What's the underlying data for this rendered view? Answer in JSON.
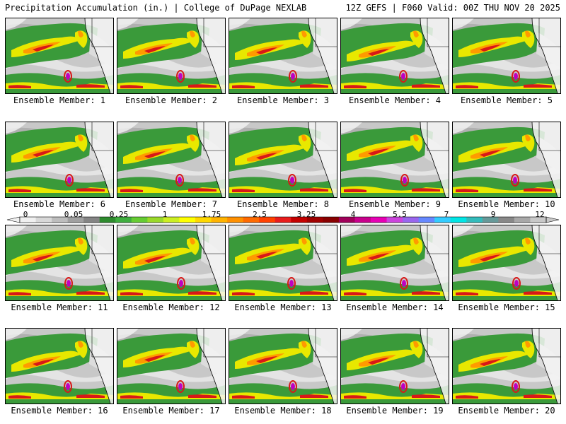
{
  "header": {
    "title": "Precipitation Accumulation (in.) | College of DuPage NEXLAB",
    "run_info": "12Z GEFS | F060 Valid: 00Z THU NOV 20 2025"
  },
  "panels": [
    {
      "label": "Ensemble Member: 1"
    },
    {
      "label": "Ensemble Member: 2"
    },
    {
      "label": "Ensemble Member: 3"
    },
    {
      "label": "Ensemble Member: 4"
    },
    {
      "label": "Ensemble Member: 5"
    },
    {
      "label": "Ensemble Member: 6"
    },
    {
      "label": "Ensemble Member: 7"
    },
    {
      "label": "Ensemble Member: 8"
    },
    {
      "label": "Ensemble Member: 9"
    },
    {
      "label": "Ensemble Member: 10"
    },
    {
      "label": "Ensemble Member: 11"
    },
    {
      "label": "Ensemble Member: 12"
    },
    {
      "label": "Ensemble Member: 13"
    },
    {
      "label": "Ensemble Member: 14"
    },
    {
      "label": "Ensemble Member: 15"
    },
    {
      "label": "Ensemble Member: 16"
    },
    {
      "label": "Ensemble Member: 17"
    },
    {
      "label": "Ensemble Member: 18"
    },
    {
      "label": "Ensemble Member: 19"
    },
    {
      "label": "Ensemble Member: 20"
    }
  ],
  "colorbar": {
    "labels": [
      "0",
      "0.05",
      "0.25",
      "1",
      "1.75",
      "2.5",
      "3.25",
      "4",
      "5.5",
      "7",
      "9",
      "12"
    ],
    "colors": [
      "#f0f0f0",
      "#d8d8d8",
      "#bdbdbd",
      "#a0a0a0",
      "#848484",
      "#2e8b2e",
      "#3fae3f",
      "#66cc33",
      "#9ad92a",
      "#ccee22",
      "#ffff00",
      "#ffd800",
      "#ffb300",
      "#ff9000",
      "#ff6a00",
      "#ff4000",
      "#e81c1c",
      "#c40000",
      "#a00000",
      "#880000",
      "#a0005a",
      "#c8008c",
      "#e600b4",
      "#cc44dd",
      "#9966ee",
      "#6688ff",
      "#33ccff",
      "#00e5e5",
      "#33bbbb",
      "#669999",
      "#888888",
      "#a8a8a8",
      "#c8c8c8"
    ]
  },
  "map_colors": {
    "ocean_gray": "#c8c8c8",
    "green": "#3a9a3a",
    "yellow": "#e8e800",
    "orange": "#ff9a00",
    "red": "#d81818",
    "magenta": "#c000c0",
    "land_white": "#f4f4f4"
  }
}
